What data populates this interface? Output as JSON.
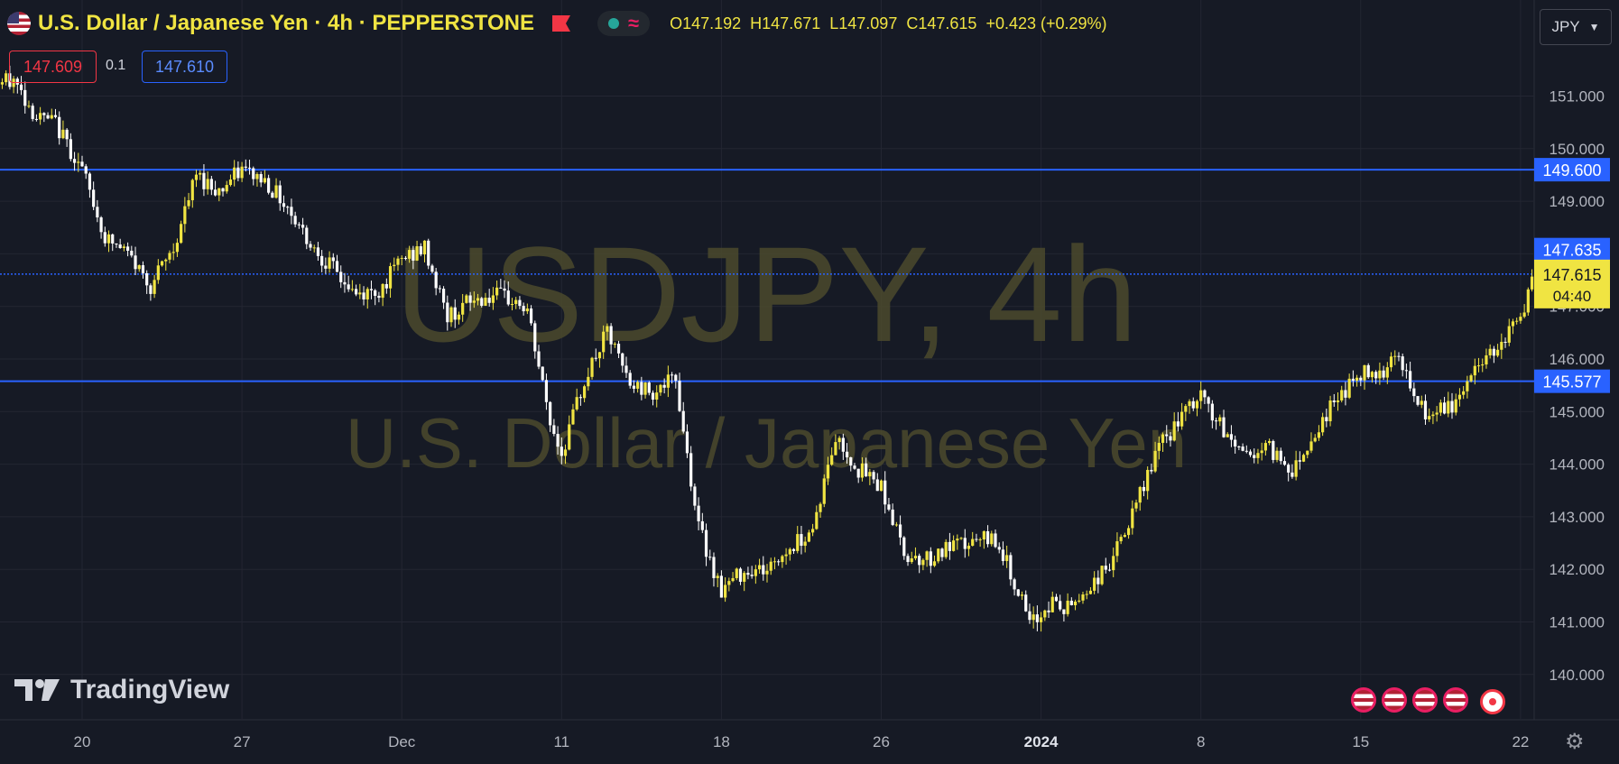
{
  "header": {
    "symbol_title": "U.S. Dollar / Japanese Yen · 4h · PEPPERSTONE",
    "ohlc": {
      "open": "O147.192",
      "high": "H147.671",
      "low": "L147.097",
      "close": "C147.615",
      "change": "+0.423 (+0.29%)"
    },
    "accent_color": "#f0e442"
  },
  "trade": {
    "sell_price": "147.609",
    "spread": "0.1",
    "buy_price": "147.610"
  },
  "currency_button": "JPY",
  "watermark": {
    "line1": "USDJPY, 4h",
    "line2": "U.S. Dollar / Japanese Yen"
  },
  "brand": "TradingView",
  "chart_data": {
    "type": "candlestick",
    "timeframe": "4h",
    "y_ticks": [
      "151.000",
      "150.000",
      "149.000",
      "148.000",
      "147.000",
      "146.000",
      "145.000",
      "144.000",
      "143.000",
      "142.000",
      "141.000",
      "140.000"
    ],
    "x_ticks": [
      "20",
      "27",
      "Dec",
      "11",
      "18",
      "26",
      "2024",
      "8",
      "15",
      "22"
    ],
    "ylim": [
      139.2,
      152.7
    ],
    "horizontal_lines": [
      {
        "label": "149.600",
        "value": 149.6,
        "color": "#2962ff"
      },
      {
        "label": "145.577",
        "value": 145.577,
        "color": "#2962ff"
      }
    ],
    "last_price": {
      "label": "147.615",
      "value": 147.615,
      "countdown": "04:40"
    },
    "ask_price": {
      "label": "147.635",
      "value": 147.635
    },
    "close_path": [
      {
        "d": -4.5,
        "c": 150.4
      },
      {
        "d": -4.0,
        "c": 151.2
      },
      {
        "d": -3.0,
        "c": 151.3
      },
      {
        "d": -2.0,
        "c": 150.6
      },
      {
        "d": -1.2,
        "c": 150.5
      },
      {
        "d": 0,
        "c": 149.6
      },
      {
        "d": 1,
        "c": 148.3
      },
      {
        "d": 2,
        "c": 148.0
      },
      {
        "d": 3,
        "c": 147.4
      },
      {
        "d": 4,
        "c": 148.1
      },
      {
        "d": 5,
        "c": 149.5
      },
      {
        "d": 6,
        "c": 149.2
      },
      {
        "d": 7,
        "c": 149.6
      },
      {
        "d": 8,
        "c": 149.4
      },
      {
        "d": 9,
        "c": 148.9
      },
      {
        "d": 10,
        "c": 148.2
      },
      {
        "d": 11,
        "c": 147.7
      },
      {
        "d": 12,
        "c": 147.2
      },
      {
        "d": 13,
        "c": 147.3
      },
      {
        "d": 14,
        "c": 147.9
      },
      {
        "d": 15,
        "c": 148.1
      },
      {
        "d": 16,
        "c": 146.8
      },
      {
        "d": 17,
        "c": 147.1
      },
      {
        "d": 18,
        "c": 147.2
      },
      {
        "d": 19,
        "c": 147.1
      },
      {
        "d": 19.5,
        "c": 146.9
      },
      {
        "d": 20.5,
        "c": 144.8
      },
      {
        "d": 21,
        "c": 144.2
      },
      {
        "d": 22,
        "c": 145.6
      },
      {
        "d": 23,
        "c": 146.5
      },
      {
        "d": 24,
        "c": 145.5
      },
      {
        "d": 25,
        "c": 145.4
      },
      {
        "d": 26,
        "c": 145.6
      },
      {
        "d": 27,
        "c": 142.8
      },
      {
        "d": 28,
        "c": 141.6
      },
      {
        "d": 29,
        "c": 142.0
      },
      {
        "d": 30,
        "c": 142.0
      },
      {
        "d": 31,
        "c": 142.4
      },
      {
        "d": 32,
        "c": 142.8
      },
      {
        "d": 33,
        "c": 144.5
      },
      {
        "d": 34,
        "c": 143.9
      },
      {
        "d": 35,
        "c": 143.6
      },
      {
        "d": 36,
        "c": 142.3
      },
      {
        "d": 37,
        "c": 142.2
      },
      {
        "d": 38,
        "c": 142.4
      },
      {
        "d": 39,
        "c": 142.5
      },
      {
        "d": 40,
        "c": 142.6
      },
      {
        "d": 41,
        "c": 141.6
      },
      {
        "d": 41.5,
        "c": 140.9
      },
      {
        "d": 42.5,
        "c": 141.4
      },
      {
        "d": 43,
        "c": 141.2
      },
      {
        "d": 44,
        "c": 141.6
      },
      {
        "d": 45,
        "c": 142.1
      },
      {
        "d": 46,
        "c": 143.0
      },
      {
        "d": 47,
        "c": 144.2
      },
      {
        "d": 48,
        "c": 144.8
      },
      {
        "d": 49,
        "c": 145.3
      },
      {
        "d": 50,
        "c": 144.6
      },
      {
        "d": 51,
        "c": 144.2
      },
      {
        "d": 52,
        "c": 144.3
      },
      {
        "d": 53,
        "c": 143.9
      },
      {
        "d": 54,
        "c": 144.6
      },
      {
        "d": 55,
        "c": 145.3
      },
      {
        "d": 56,
        "c": 145.7
      },
      {
        "d": 57,
        "c": 145.8
      },
      {
        "d": 57.5,
        "c": 146.2
      },
      {
        "d": 58.5,
        "c": 145.1
      },
      {
        "d": 59,
        "c": 144.9
      },
      {
        "d": 60,
        "c": 145.1
      },
      {
        "d": 61,
        "c": 145.8
      },
      {
        "d": 62,
        "c": 146.3
      },
      {
        "d": 63,
        "c": 146.8
      },
      {
        "d": 63.6,
        "c": 147.6
      }
    ]
  }
}
